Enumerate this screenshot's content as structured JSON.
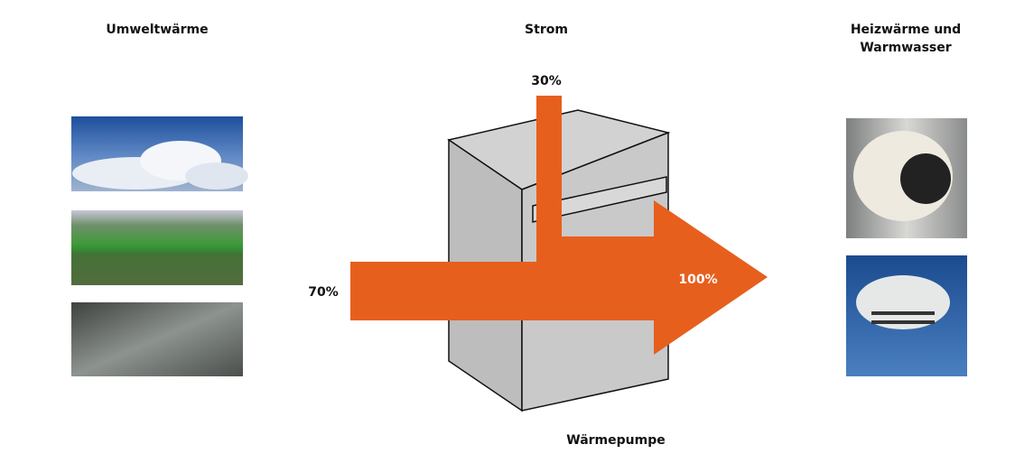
{
  "headings": {
    "source": "Umweltwärme",
    "power": "Strom",
    "output": [
      "Heizwärme und",
      "Warmwasser"
    ]
  },
  "flows": {
    "power": "30%",
    "environment": "70%",
    "total": "100%"
  },
  "device": {
    "label": "Wärmepumpe"
  }
}
